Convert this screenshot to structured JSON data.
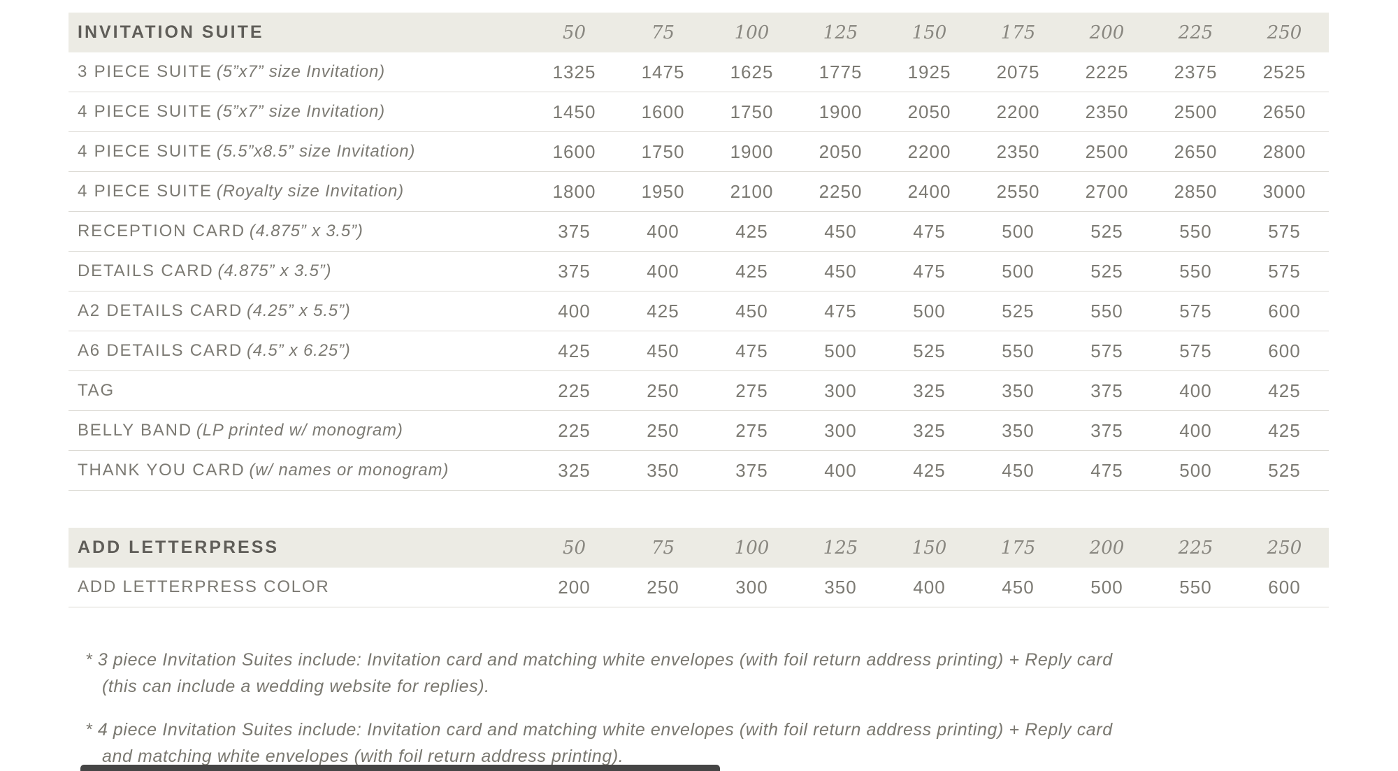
{
  "colors": {
    "band_background": "#ECEBE4",
    "band_title_text": "#5F5D58",
    "quantity_header_text": "#898780",
    "body_text": "#7C7A73",
    "divider": "#DCDAD4",
    "footnote_text": "#7A7870",
    "scrollbar_thumb": "#454545"
  },
  "quantities": [
    "50",
    "75",
    "100",
    "125",
    "150",
    "175",
    "200",
    "225",
    "250"
  ],
  "tables": [
    {
      "title": "INVITATION SUITE",
      "rows": [
        {
          "label": "3 PIECE SUITE",
          "detail": "(5”x7” size Invitation)",
          "prices": [
            1325,
            1475,
            1625,
            1775,
            1925,
            2075,
            2225,
            2375,
            2525
          ]
        },
        {
          "label": "4 PIECE SUITE",
          "detail": "(5”x7” size Invitation)",
          "prices": [
            1450,
            1600,
            1750,
            1900,
            2050,
            2200,
            2350,
            2500,
            2650
          ]
        },
        {
          "label": "4 PIECE SUITE",
          "detail": "(5.5”x8.5” size Invitation)",
          "prices": [
            1600,
            1750,
            1900,
            2050,
            2200,
            2350,
            2500,
            2650,
            2800
          ]
        },
        {
          "label": "4 PIECE SUITE",
          "detail": "(Royalty size Invitation)",
          "prices": [
            1800,
            1950,
            2100,
            2250,
            2400,
            2550,
            2700,
            2850,
            3000
          ]
        },
        {
          "label": "RECEPTION CARD",
          "detail": "(4.875” x 3.5”)",
          "prices": [
            375,
            400,
            425,
            450,
            475,
            500,
            525,
            550,
            575
          ]
        },
        {
          "label": "DETAILS CARD",
          "detail": "(4.875” x 3.5”)",
          "prices": [
            375,
            400,
            425,
            450,
            475,
            500,
            525,
            550,
            575
          ]
        },
        {
          "label": "A2 DETAILS CARD",
          "detail": "(4.25” x 5.5”)",
          "prices": [
            400,
            425,
            450,
            475,
            500,
            525,
            550,
            575,
            600
          ]
        },
        {
          "label": "A6 DETAILS CARD",
          "detail": "(4.5” x 6.25”)",
          "prices": [
            425,
            450,
            475,
            500,
            525,
            550,
            575,
            575,
            600
          ]
        },
        {
          "label": "TAG",
          "detail": "",
          "prices": [
            225,
            250,
            275,
            300,
            325,
            350,
            375,
            400,
            425
          ]
        },
        {
          "label": "BELLY BAND",
          "detail": "(LP printed w/ monogram)",
          "prices": [
            225,
            250,
            275,
            300,
            325,
            350,
            375,
            400,
            425
          ]
        },
        {
          "label": "THANK YOU CARD",
          "detail": "(w/ names or monogram)",
          "prices": [
            325,
            350,
            375,
            400,
            425,
            450,
            475,
            500,
            525
          ]
        }
      ]
    },
    {
      "title": "ADD LETTERPRESS",
      "rows": [
        {
          "label": "ADD LETTERPRESS COLOR",
          "detail": "",
          "prices": [
            200,
            250,
            300,
            350,
            400,
            450,
            500,
            550,
            600
          ]
        }
      ]
    }
  ],
  "footnotes": [
    {
      "line1": "* 3 piece Invitation Suites include: Invitation card and matching white envelopes (with foil return address printing) + Reply card",
      "line2": "(this can include a wedding website for replies)."
    },
    {
      "line1": "* 4 piece Invitation Suites include: Invitation card and matching white envelopes (with foil return address printing) + Reply card",
      "line2": "and matching white envelopes (with foil return address printing)."
    }
  ]
}
